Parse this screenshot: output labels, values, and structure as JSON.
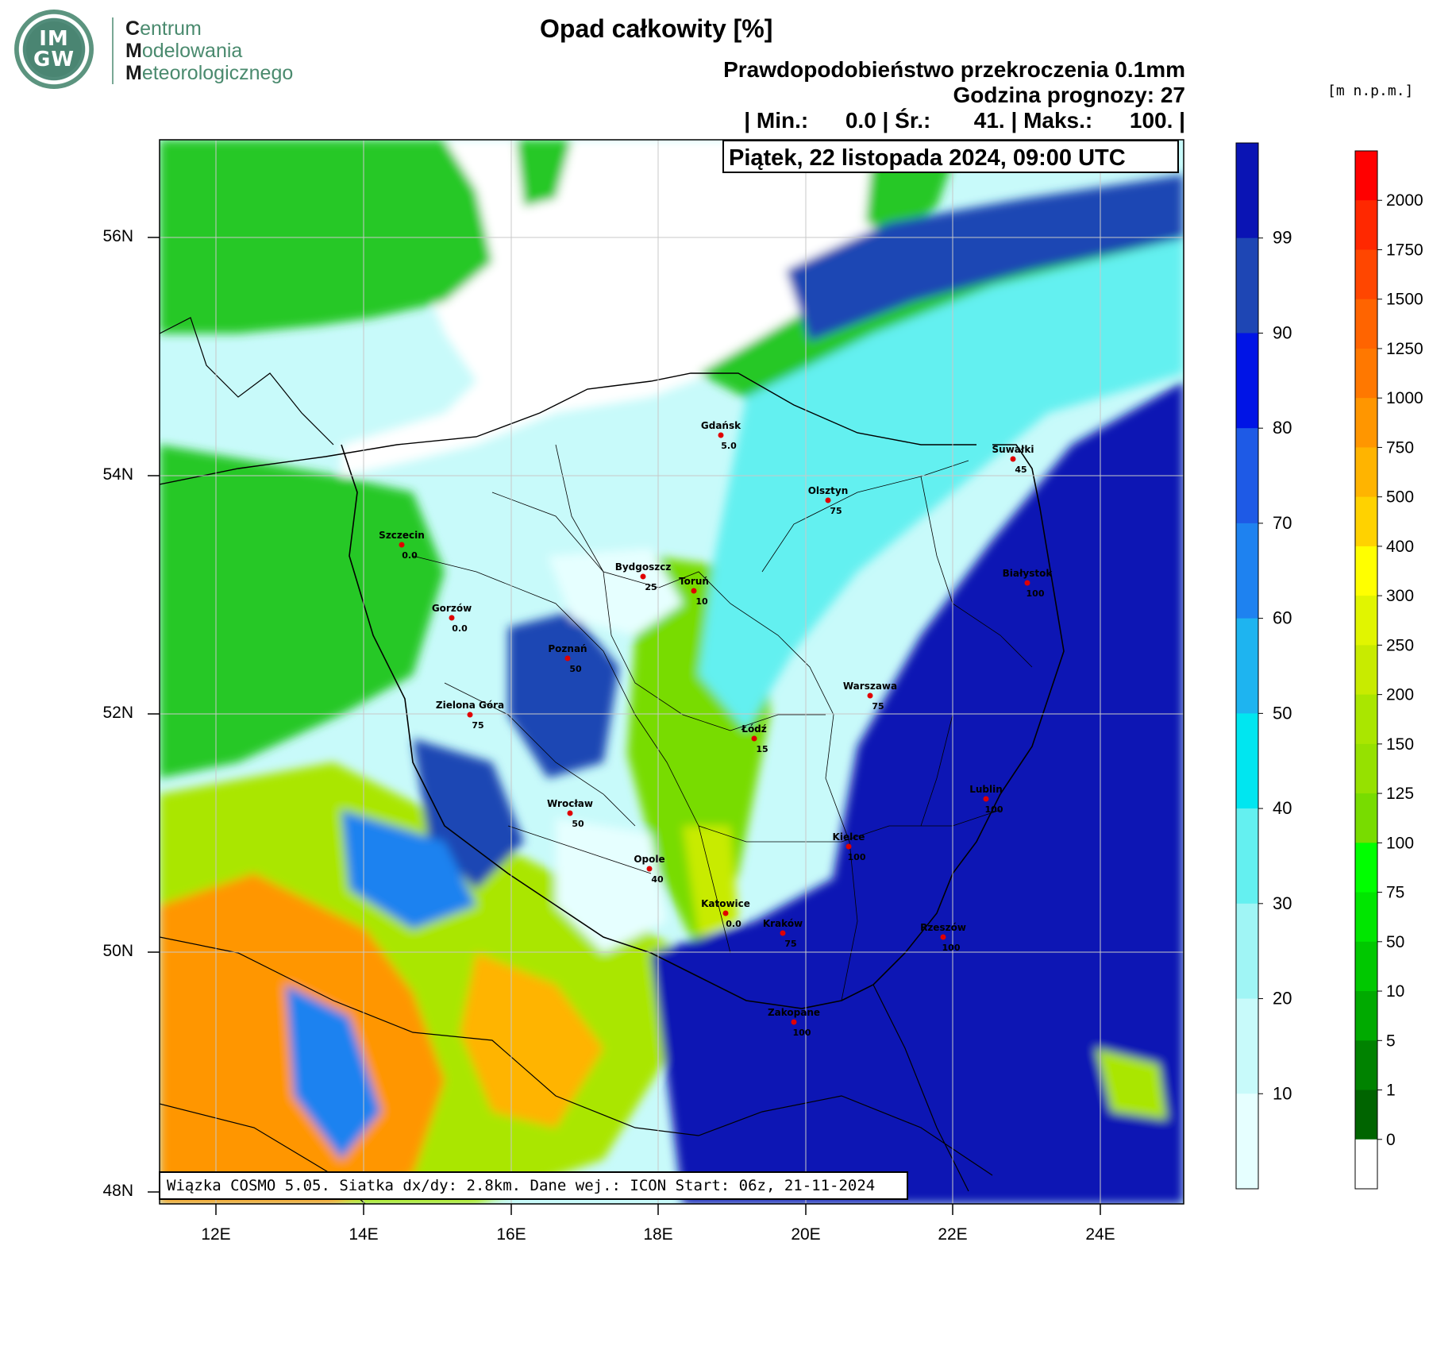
{
  "header": {
    "title": "Opad całkowity [%]",
    "subtitle_line1": "Prawdopodobieństwo przekroczenia 0.1mm",
    "subtitle_line2": "Godzina prognozy: 27",
    "stats_line": "| Min.:      0.0 | Śr.:       41. | Maks.:      100. |",
    "unit_label": "[m n.p.m.]"
  },
  "logo": {
    "abbrev_top": "IM",
    "abbrev_bottom": "GW",
    "line1_initial": "C",
    "line1_rest": "entrum",
    "line2_initial": "M",
    "line2_rest": "odelowania",
    "line3_initial": "M",
    "line3_rest": "eteorologicznego"
  },
  "map": {
    "datetime": "Piątek, 22 listopada 2024, 09:00 UTC",
    "footer": "Wiązka COSMO 5.05. Siatka dx/dy: 2.8km. Dane wej.: ICON Start: 06z, 21-11-2024",
    "lat_labels": [
      "56N",
      "54N",
      "52N",
      "50N",
      "48N"
    ],
    "lon_labels": [
      "12E",
      "14E",
      "16E",
      "18E",
      "20E",
      "22E",
      "24E"
    ],
    "cities": [
      {
        "name": "Gdańsk",
        "value": "5.0"
      },
      {
        "name": "Suwałki",
        "value": "45"
      },
      {
        "name": "Olsztyn",
        "value": "75"
      },
      {
        "name": "Szczecin",
        "value": "0.0"
      },
      {
        "name": "Bydgoszcz",
        "value": "25"
      },
      {
        "name": "Toruń",
        "value": "10"
      },
      {
        "name": "Białystok",
        "value": "100"
      },
      {
        "name": "Gorzów",
        "value": "0.0"
      },
      {
        "name": "Poznań",
        "value": "50"
      },
      {
        "name": "Warszawa",
        "value": "75"
      },
      {
        "name": "Zielona Góra",
        "value": "75"
      },
      {
        "name": "Łódź",
        "value": "15"
      },
      {
        "name": "Lublin",
        "value": "100"
      },
      {
        "name": "Wrocław",
        "value": "50"
      },
      {
        "name": "Kielce",
        "value": "100"
      },
      {
        "name": "Opole",
        "value": "40"
      },
      {
        "name": "Katowice",
        "value": "0.0"
      },
      {
        "name": "Kraków",
        "value": "75"
      },
      {
        "name": "Rzeszów",
        "value": "100"
      },
      {
        "name": "Zakopane",
        "value": "100"
      }
    ]
  },
  "colorbar_probability": {
    "ticks": [
      "99",
      "90",
      "80",
      "70",
      "60",
      "50",
      "40",
      "30",
      "20",
      "10"
    ],
    "colors": [
      "#0a14b4",
      "#1e46b4",
      "#0014e6",
      "#1e5ae6",
      "#1e82f0",
      "#1eb4f0",
      "#00e6f0",
      "#64f0f0",
      "#a0f5f5",
      "#c8fafa",
      "#e6ffff"
    ]
  },
  "colorbar_elevation": {
    "ticks": [
      "2000",
      "1750",
      "1500",
      "1250",
      "1000",
      "750",
      "500",
      "400",
      "300",
      "250",
      "200",
      "150",
      "125",
      "100",
      "75",
      "50",
      "10",
      "5",
      "1",
      "0"
    ],
    "colors": [
      "#ff0000",
      "#ff2800",
      "#ff4600",
      "#ff6400",
      "#ff7800",
      "#ff9600",
      "#ffb400",
      "#ffd200",
      "#ffff00",
      "#e1f500",
      "#c8eb00",
      "#aae600",
      "#96e100",
      "#78dc00",
      "#00ff00",
      "#00e600",
      "#00c800",
      "#00aa00",
      "#008200",
      "#006400",
      "#ffffff"
    ]
  }
}
